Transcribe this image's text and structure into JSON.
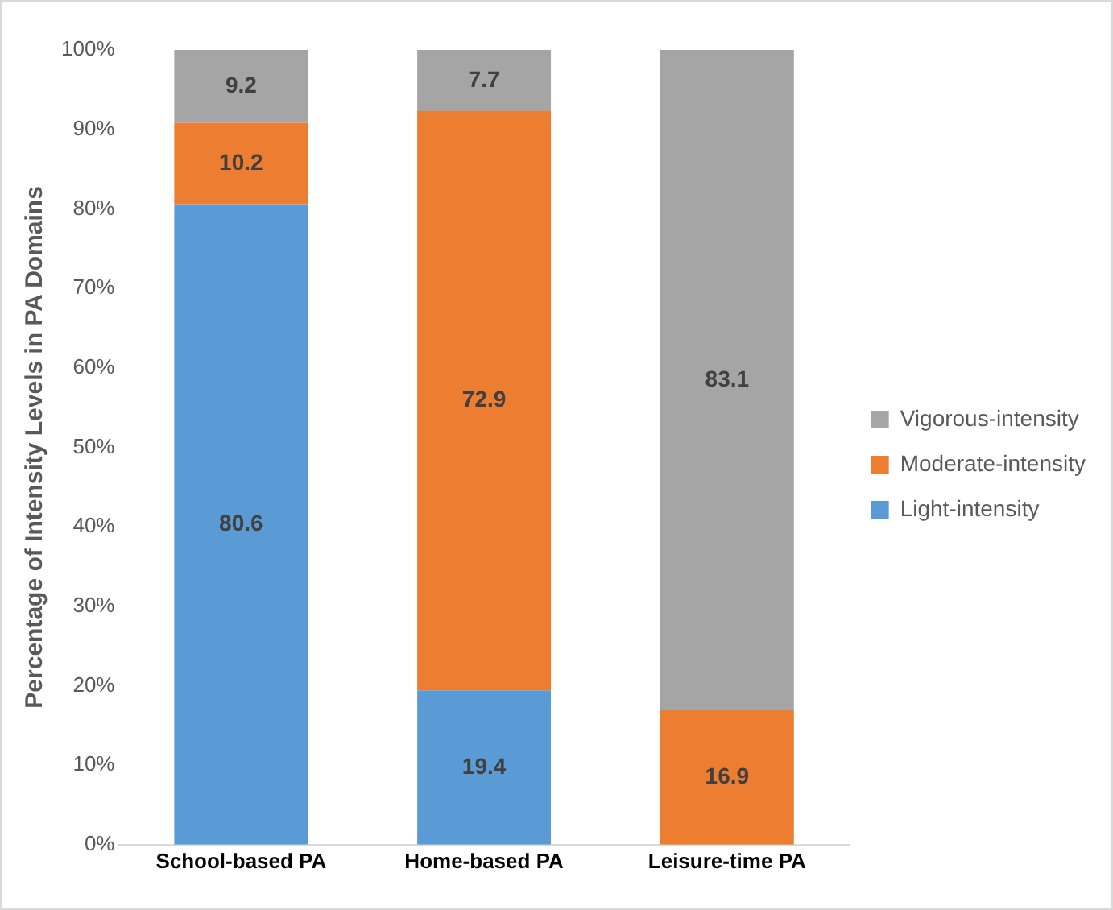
{
  "chart_data": {
    "type": "bar",
    "stacked": true,
    "ylabel": "Percentage of Intensity Levels in PA Domains",
    "categories": [
      "School-based PA",
      "Home-based PA",
      "Leisure-time PA"
    ],
    "series": [
      {
        "name": "Light-intensity",
        "color": "#5b9bd5",
        "values": [
          80.6,
          19.4,
          0
        ],
        "value_labels": [
          "80.6",
          "19.4",
          null
        ]
      },
      {
        "name": "Moderate-intensity",
        "color": "#ed7d31",
        "values": [
          10.2,
          72.9,
          16.9
        ],
        "value_labels": [
          "10.2",
          "72.9",
          "16.9"
        ]
      },
      {
        "name": "Vigorous-intensity",
        "color": "#a5a5a5",
        "values": [
          9.2,
          7.7,
          83.1
        ],
        "value_labels": [
          "9.2",
          "7.7",
          "83.1"
        ]
      }
    ],
    "ylim": [
      0,
      100
    ],
    "yticks": [
      {
        "value": 0,
        "label": "0%"
      },
      {
        "value": 10,
        "label": "10%"
      },
      {
        "value": 20,
        "label": "20%"
      },
      {
        "value": 30,
        "label": "30%"
      },
      {
        "value": 40,
        "label": "40%"
      },
      {
        "value": 50,
        "label": "50%"
      },
      {
        "value": 60,
        "label": "60%"
      },
      {
        "value": 70,
        "label": "70%"
      },
      {
        "value": 80,
        "label": "80%"
      },
      {
        "value": 90,
        "label": "90%"
      },
      {
        "value": 100,
        "label": "100%"
      }
    ],
    "grid": false,
    "legend": "right"
  }
}
